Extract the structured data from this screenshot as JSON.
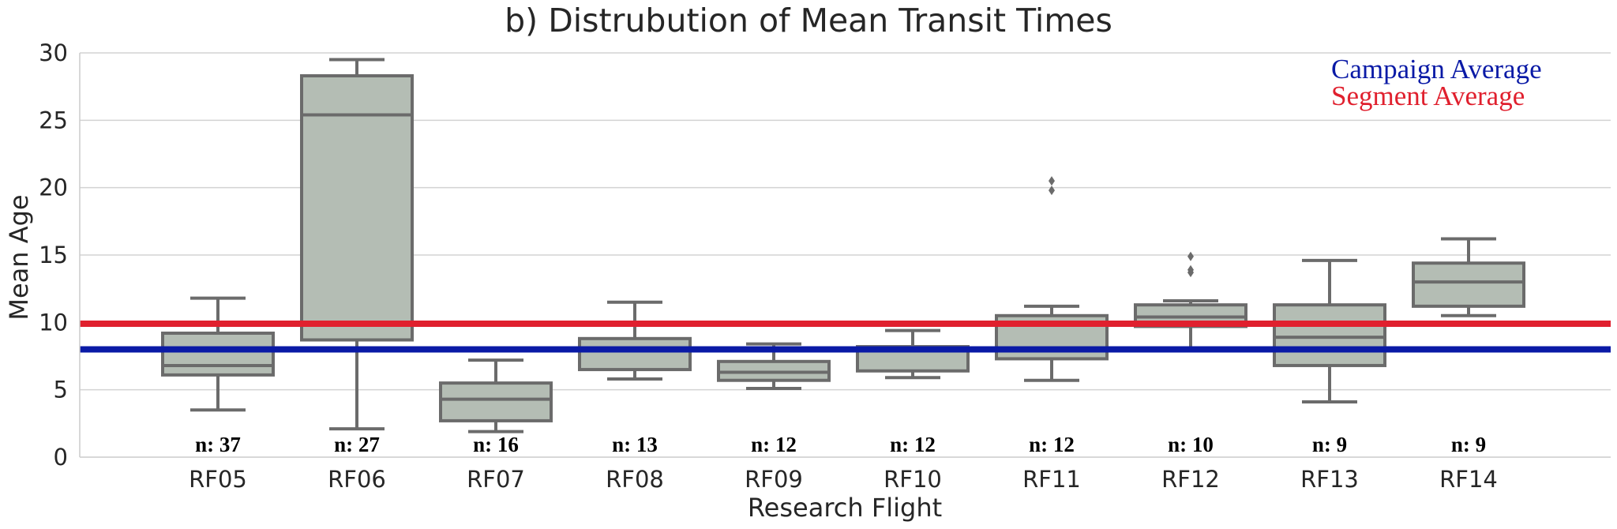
{
  "chart_data": {
    "type": "box",
    "title": "b) Distrubution of Mean Transit Times",
    "xlabel": "Research Flight",
    "ylabel": "Mean Age",
    "ylim": [
      0,
      30
    ],
    "yticks": [
      0,
      5,
      10,
      15,
      20,
      25,
      30
    ],
    "grid": "horizontal",
    "box_color": "#b4bdb4",
    "line_color": "#6b6b6b",
    "categories": [
      "RF05",
      "RF06",
      "RF07",
      "RF08",
      "RF09",
      "RF10",
      "RF11",
      "RF12",
      "RF13",
      "RF14"
    ],
    "boxes": [
      {
        "whislo": 3.5,
        "q1": 6.1,
        "med": 6.8,
        "q3": 9.2,
        "whishi": 11.8,
        "fliers": [],
        "n_label": "n: 37"
      },
      {
        "whislo": 2.1,
        "q1": 8.7,
        "med": 25.4,
        "q3": 28.3,
        "whishi": 29.5,
        "fliers": [],
        "n_label": "n: 27"
      },
      {
        "whislo": 1.9,
        "q1": 2.7,
        "med": 4.3,
        "q3": 5.5,
        "whishi": 7.2,
        "fliers": [],
        "n_label": "n: 16"
      },
      {
        "whislo": 5.8,
        "q1": 6.5,
        "med": 8.0,
        "q3": 8.8,
        "whishi": 11.5,
        "fliers": [],
        "n_label": "n: 13"
      },
      {
        "whislo": 5.1,
        "q1": 5.7,
        "med": 6.3,
        "q3": 7.1,
        "whishi": 8.4,
        "fliers": [],
        "n_label": "n: 12"
      },
      {
        "whislo": 5.9,
        "q1": 6.4,
        "med": 7.9,
        "q3": 8.2,
        "whishi": 9.4,
        "fliers": [],
        "n_label": "n: 12"
      },
      {
        "whislo": 5.7,
        "q1": 7.3,
        "med": 7.9,
        "q3": 10.5,
        "whishi": 11.2,
        "fliers": [
          19.8,
          20.5
        ],
        "n_label": "n: 12"
      },
      {
        "whislo": 8.0,
        "q1": 9.7,
        "med": 10.4,
        "q3": 11.3,
        "whishi": 11.6,
        "fliers": [
          13.7,
          13.9,
          14.9
        ],
        "n_label": "n: 10"
      },
      {
        "whislo": 4.1,
        "q1": 6.8,
        "med": 8.9,
        "q3": 11.3,
        "whishi": 14.6,
        "fliers": [],
        "n_label": "n: 9"
      },
      {
        "whislo": 10.5,
        "q1": 11.2,
        "med": 13.0,
        "q3": 14.4,
        "whishi": 16.2,
        "fliers": [],
        "n_label": "n: 9"
      }
    ],
    "reference_lines": [
      {
        "name": "Segment Average",
        "value": 9.9,
        "color": "#e0202e"
      },
      {
        "name": "Campaign Average",
        "value": 8.0,
        "color": "#0a1aa6"
      }
    ],
    "legend": {
      "position": "top-right",
      "entries": [
        {
          "label": "Campaign Average",
          "color": "#0a1aa6"
        },
        {
          "label": "Segment Average",
          "color": "#e0202e"
        }
      ]
    }
  }
}
